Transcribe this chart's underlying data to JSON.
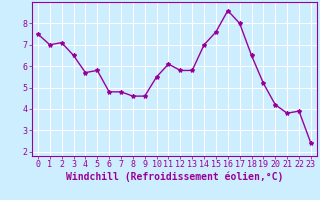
{
  "x": [
    0,
    1,
    2,
    3,
    4,
    5,
    6,
    7,
    8,
    9,
    10,
    11,
    12,
    13,
    14,
    15,
    16,
    17,
    18,
    19,
    20,
    21,
    22,
    23
  ],
  "y": [
    7.5,
    7.0,
    7.1,
    6.5,
    5.7,
    5.8,
    4.8,
    4.8,
    4.6,
    4.6,
    5.5,
    6.1,
    5.8,
    5.8,
    7.0,
    7.6,
    8.6,
    8.0,
    6.5,
    5.2,
    4.2,
    3.8,
    3.9,
    2.4
  ],
  "line_color": "#990099",
  "marker": "*",
  "marker_size": 3,
  "bg_color": "#cceeff",
  "grid_color": "#ffffff",
  "xlabel": "Windchill (Refroidissement éolien,°C)",
  "ylabel": "",
  "ylim": [
    1.8,
    9.0
  ],
  "xlim": [
    -0.5,
    23.5
  ],
  "yticks": [
    2,
    3,
    4,
    5,
    6,
    7,
    8
  ],
  "xticks": [
    0,
    1,
    2,
    3,
    4,
    5,
    6,
    7,
    8,
    9,
    10,
    11,
    12,
    13,
    14,
    15,
    16,
    17,
    18,
    19,
    20,
    21,
    22,
    23
  ],
  "tick_color": "#990099",
  "label_color": "#990099",
  "label_fontsize": 7,
  "tick_fontsize": 6,
  "line_width": 1.0
}
